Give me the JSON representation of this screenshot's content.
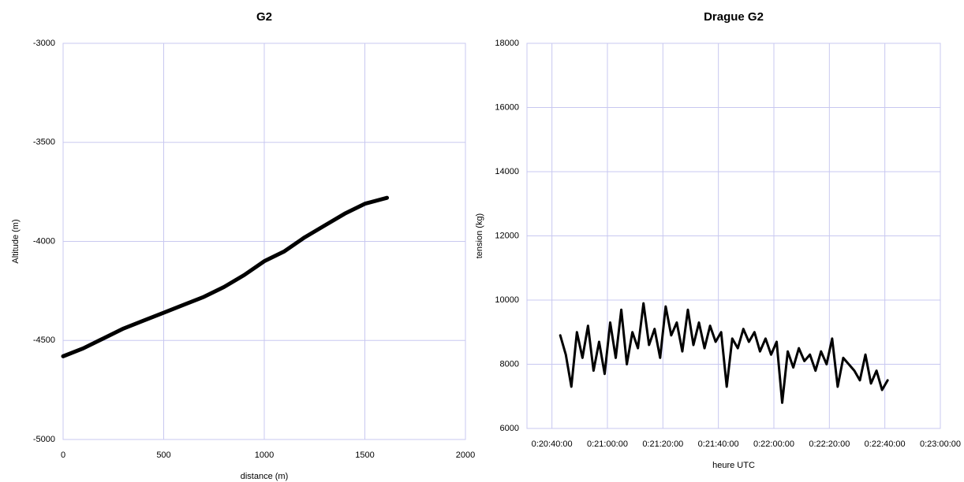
{
  "chart_data": [
    {
      "type": "line",
      "title": "G2",
      "x_label": "distance (m)",
      "y_label": "Altitude (m)",
      "xlim": [
        0,
        2000
      ],
      "xticks": [
        0,
        500,
        1000,
        1500,
        2000
      ],
      "ylim": [
        -5000,
        -3000
      ],
      "yticks": [
        -5000,
        -4500,
        -4000,
        -3500,
        -3000
      ],
      "grid": true,
      "x": [
        0,
        100,
        200,
        300,
        400,
        500,
        600,
        700,
        800,
        900,
        1000,
        1100,
        1200,
        1300,
        1400,
        1500,
        1610
      ],
      "series": [
        {
          "color": "#000000",
          "values": [
            -4580,
            -4540,
            -4490,
            -4440,
            -4400,
            -4360,
            -4320,
            -4280,
            -4230,
            -4170,
            -4100,
            -4050,
            -3980,
            -3920,
            -3860,
            -3810,
            -3780
          ]
        }
      ]
    },
    {
      "type": "line",
      "title": "Drague G2",
      "x_label": "heure UTC",
      "y_label": "tension (kg)",
      "xlim": [
        1231,
        1380
      ],
      "xticks": [
        {
          "value": 1240,
          "label": "0:20:40:00"
        },
        {
          "value": 1260,
          "label": "0:21:00:00"
        },
        {
          "value": 1280,
          "label": "0:21:20:00"
        },
        {
          "value": 1300,
          "label": "0:21:40:00"
        },
        {
          "value": 1320,
          "label": "0:22:00:00"
        },
        {
          "value": 1340,
          "label": "0:22:20:00"
        },
        {
          "value": 1360,
          "label": "0:22:40:00"
        },
        {
          "value": 1380,
          "label": "0:23:00:00"
        }
      ],
      "ylim": [
        6000,
        18000
      ],
      "yticks": [
        6000,
        8000,
        10000,
        12000,
        14000,
        16000,
        18000
      ],
      "grid": true,
      "x": [
        1243,
        1245,
        1247,
        1249,
        1251,
        1253,
        1255,
        1257,
        1259,
        1261,
        1263,
        1265,
        1267,
        1269,
        1271,
        1273,
        1275,
        1277,
        1279,
        1281,
        1283,
        1285,
        1287,
        1289,
        1291,
        1293,
        1295,
        1297,
        1299,
        1301,
        1303,
        1305,
        1307,
        1309,
        1311,
        1313,
        1315,
        1317,
        1319,
        1321,
        1323,
        1325,
        1327,
        1329,
        1331,
        1333,
        1335,
        1337,
        1339,
        1341,
        1343,
        1345,
        1347,
        1349,
        1351,
        1353,
        1355,
        1357,
        1359,
        1361
      ],
      "series": [
        {
          "color": "#000000",
          "values": [
            8900,
            8300,
            7300,
            9000,
            8200,
            9200,
            7800,
            8700,
            7700,
            9300,
            8200,
            9700,
            8000,
            9000,
            8500,
            9900,
            8600,
            9100,
            8200,
            9800,
            8900,
            9300,
            8400,
            9700,
            8600,
            9300,
            8500,
            9200,
            8700,
            9000,
            7300,
            8800,
            8500,
            9100,
            8700,
            9000,
            8400,
            8800,
            8300,
            8700,
            6800,
            8400,
            7900,
            8500,
            8100,
            8300,
            7800,
            8400,
            8000,
            8800,
            7300,
            8200,
            8000,
            7800,
            7500,
            8300,
            7400,
            7800,
            7200,
            7500
          ]
        }
      ]
    }
  ]
}
